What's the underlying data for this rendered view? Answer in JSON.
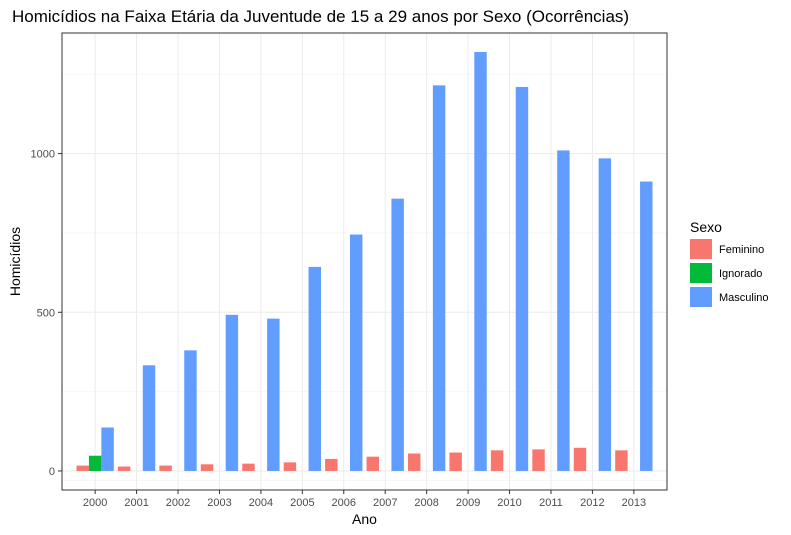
{
  "chart_data": {
    "type": "bar",
    "title": "Homicídios na Faixa Etária da Juventude de 15 a 29 anos por Sexo (Ocorrências)",
    "xlabel": "Ano",
    "ylabel": "Homicídios",
    "ylim": [
      -60,
      1380
    ],
    "yticks": [
      0,
      500,
      1000
    ],
    "grid": true,
    "legend": {
      "title": "Sexo",
      "position": "right"
    },
    "categories": [
      "2000",
      "2001",
      "2002",
      "2003",
      "2004",
      "2005",
      "2006",
      "2007",
      "2008",
      "2009",
      "2010",
      "2011",
      "2012",
      "2013"
    ],
    "series": [
      {
        "name": "Feminino",
        "color": "#F8766D",
        "values": [
          17,
          14,
          17,
          21,
          23,
          27,
          38,
          45,
          55,
          58,
          65,
          68,
          73,
          65
        ]
      },
      {
        "name": "Ignorado",
        "color": "#00BA38",
        "values": [
          48,
          null,
          null,
          null,
          null,
          null,
          null,
          null,
          null,
          null,
          null,
          null,
          null,
          null
        ]
      },
      {
        "name": "Masculino",
        "color": "#619CFF",
        "values": [
          137,
          333,
          380,
          492,
          480,
          643,
          745,
          858,
          1215,
          1320,
          1210,
          1010,
          985,
          912
        ]
      }
    ]
  }
}
